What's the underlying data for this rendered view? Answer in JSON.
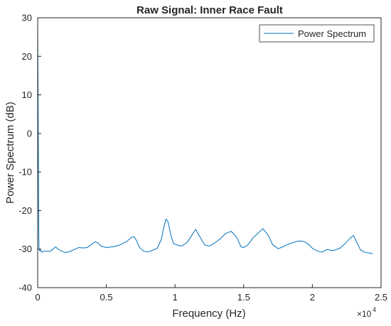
{
  "chart_data": {
    "type": "line",
    "title": "Raw Signal: Inner Race Fault",
    "xlabel": "Frequency (Hz)",
    "ylabel": "Power Spectrum (dB)",
    "xlim": [
      0,
      2.5
    ],
    "ylim": [
      -40,
      30
    ],
    "x_exponent_label": "×10",
    "x_exponent_power": "4",
    "xticks": [
      {
        "value": 0,
        "label": "0"
      },
      {
        "value": 0.5,
        "label": "0.5"
      },
      {
        "value": 1,
        "label": "1"
      },
      {
        "value": 1.5,
        "label": "1.5"
      },
      {
        "value": 2,
        "label": "2"
      },
      {
        "value": 2.5,
        "label": "2.5"
      }
    ],
    "yticks": [
      {
        "value": -40,
        "label": "-40"
      },
      {
        "value": -30,
        "label": "-30"
      },
      {
        "value": -20,
        "label": "-20"
      },
      {
        "value": -10,
        "label": "-10"
      },
      {
        "value": 0,
        "label": "0"
      },
      {
        "value": 10,
        "label": "10"
      },
      {
        "value": 20,
        "label": "20"
      },
      {
        "value": 30,
        "label": "30"
      }
    ],
    "grid": false,
    "legend_position": "top-right",
    "series": [
      {
        "name": "Power Spectrum",
        "color": "#0072BD",
        "x": [
          0.0,
          0.002,
          0.004,
          0.006,
          0.008,
          0.01,
          0.015,
          0.02,
          0.03,
          0.05,
          0.08,
          0.1,
          0.13,
          0.16,
          0.2,
          0.23,
          0.26,
          0.3,
          0.33,
          0.36,
          0.4,
          0.42,
          0.44,
          0.46,
          0.5,
          0.55,
          0.6,
          0.65,
          0.68,
          0.7,
          0.72,
          0.74,
          0.77,
          0.8,
          0.83,
          0.87,
          0.9,
          0.92,
          0.935,
          0.95,
          0.97,
          0.99,
          1.02,
          1.05,
          1.09,
          1.12,
          1.15,
          1.2,
          1.22,
          1.25,
          1.29,
          1.33,
          1.37,
          1.41,
          1.45,
          1.48,
          1.5,
          1.53,
          1.57,
          1.6,
          1.64,
          1.68,
          1.71,
          1.75,
          1.78,
          1.82,
          1.86,
          1.9,
          1.94,
          1.97,
          2.0,
          2.02,
          2.04,
          2.07,
          2.11,
          2.15,
          2.2,
          2.24,
          2.28,
          2.3,
          2.32,
          2.35,
          2.38,
          2.41,
          2.44
        ],
        "values": [
          27,
          16,
          2,
          -12,
          -26,
          -30,
          -30.5,
          -30.2,
          -30.8,
          -30.5,
          -30.6,
          -30.4,
          -29.4,
          -30.3,
          -30.9,
          -30.7,
          -30.2,
          -29.6,
          -29.7,
          -29.6,
          -28.6,
          -28.1,
          -28.4,
          -29.2,
          -29.6,
          -29.4,
          -28.9,
          -28.0,
          -27.0,
          -26.8,
          -27.8,
          -29.5,
          -30.5,
          -30.8,
          -30.4,
          -29.8,
          -27.5,
          -24.0,
          -22.2,
          -23.0,
          -26.5,
          -28.6,
          -29.0,
          -29.2,
          -28.2,
          -26.5,
          -24.9,
          -28.0,
          -29.0,
          -29.2,
          -28.4,
          -27.3,
          -25.9,
          -25.4,
          -27.0,
          -29.4,
          -29.6,
          -28.9,
          -27.0,
          -26.0,
          -24.7,
          -26.5,
          -28.8,
          -29.9,
          -29.5,
          -28.8,
          -28.3,
          -27.9,
          -28.0,
          -28.7,
          -29.8,
          -30.2,
          -30.5,
          -30.8,
          -30.1,
          -30.4,
          -29.8,
          -28.5,
          -27.0,
          -26.5,
          -28.0,
          -30.2,
          -30.8,
          -31.0,
          -31.2
        ]
      }
    ]
  }
}
